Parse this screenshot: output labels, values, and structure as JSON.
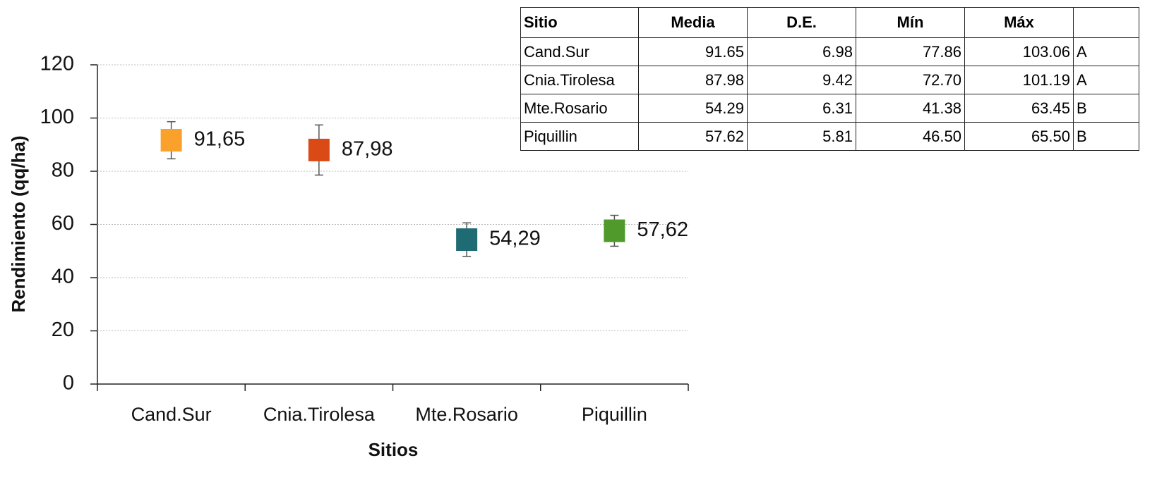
{
  "chart_data": {
    "type": "errorbar",
    "x_label": "Sitios",
    "y_label": "Rendimiento (qq/ha)",
    "categories": [
      "Cand.Sur",
      "Cnia.Tirolesa",
      "Mte.Rosario",
      "Piquillin"
    ],
    "values": [
      91.65,
      87.98,
      54.29,
      57.62
    ],
    "value_labels": [
      "91,65",
      "87,98",
      "54,29",
      "57,62"
    ],
    "errors": [
      6.98,
      9.42,
      6.31,
      5.81
    ],
    "colors": [
      "#f9a12a",
      "#d94a16",
      "#1f6b73",
      "#4f9a2a"
    ],
    "ylim": [
      0,
      120
    ],
    "yticks": [
      0,
      20,
      40,
      60,
      80,
      100,
      120
    ],
    "grid": true
  },
  "table": {
    "header": [
      "Sitio",
      "Media",
      "D.E.",
      "Mín",
      "Máx"
    ],
    "rows": [
      [
        "Cand.Sur",
        "91.65",
        "6.98",
        "77.86",
        "103.06",
        "A"
      ],
      [
        "Cnia.Tirolesa",
        "87.98",
        "9.42",
        "72.70",
        "101.19",
        "A"
      ],
      [
        "Mte.Rosario",
        "54.29",
        "6.31",
        "41.38",
        "63.45",
        "B"
      ],
      [
        "Piquillin",
        "57.62",
        "5.81",
        "46.50",
        "65.50",
        "B"
      ]
    ]
  }
}
